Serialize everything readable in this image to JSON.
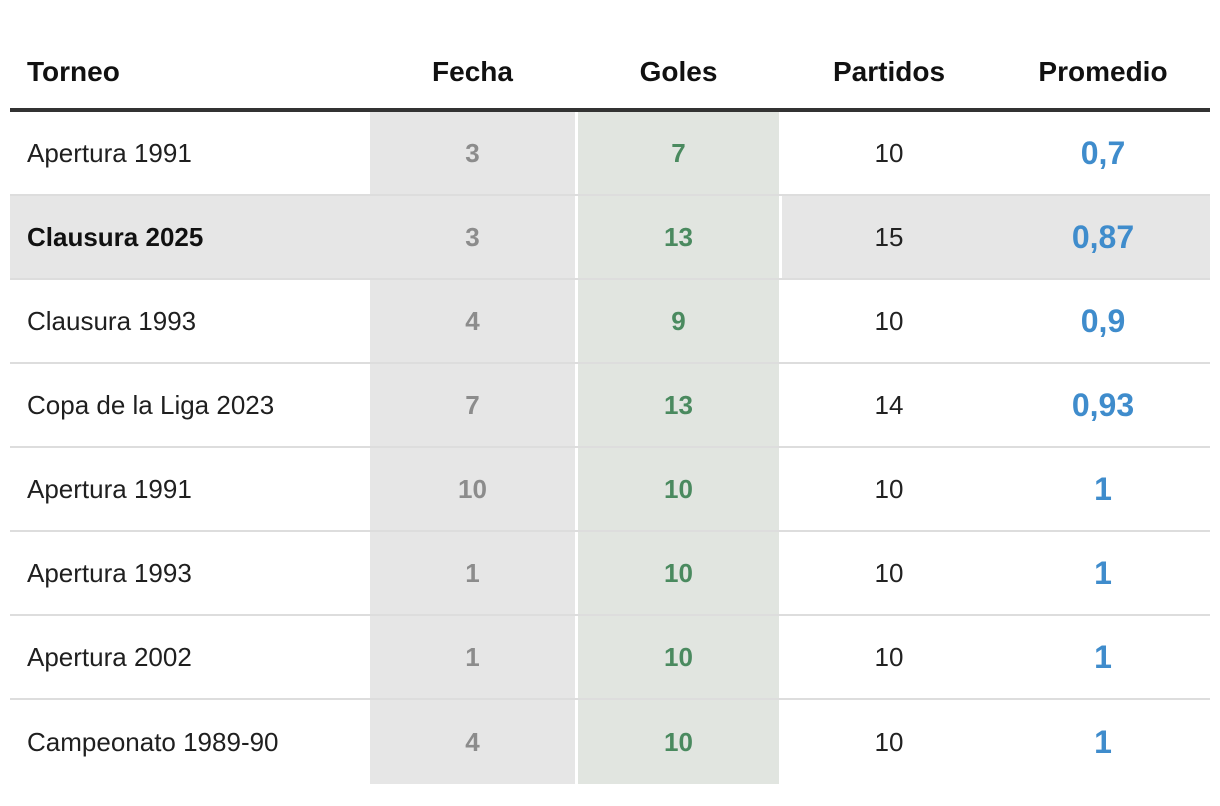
{
  "chart_data": {
    "type": "table",
    "columns": [
      "Torneo",
      "Fecha",
      "Goles",
      "Partidos",
      "Promedio"
    ],
    "rows": [
      {
        "torneo": "Apertura 1991",
        "fecha": "3",
        "goles": "7",
        "partidos": "10",
        "promedio": "0,7",
        "highlight": false
      },
      {
        "torneo": "Clausura 2025",
        "fecha": "3",
        "goles": "13",
        "partidos": "15",
        "promedio": "0,87",
        "highlight": true
      },
      {
        "torneo": "Clausura 1993",
        "fecha": "4",
        "goles": "9",
        "partidos": "10",
        "promedio": "0,9",
        "highlight": false
      },
      {
        "torneo": "Copa de la Liga 2023",
        "fecha": "7",
        "goles": "13",
        "partidos": "14",
        "promedio": "0,93",
        "highlight": false
      },
      {
        "torneo": "Apertura 1991",
        "fecha": "10",
        "goles": "10",
        "partidos": "10",
        "promedio": "1",
        "highlight": false
      },
      {
        "torneo": "Apertura 1993",
        "fecha": "1",
        "goles": "10",
        "partidos": "10",
        "promedio": "1",
        "highlight": false
      },
      {
        "torneo": "Apertura 2002",
        "fecha": "1",
        "goles": "10",
        "partidos": "10",
        "promedio": "1",
        "highlight": false
      },
      {
        "torneo": "Campeonato 1989-90",
        "fecha": "4",
        "goles": "10",
        "partidos": "10",
        "promedio": "1",
        "highlight": false
      }
    ],
    "colors": {
      "fecha_bg": "#e6e6e6",
      "goles_bg": "#e1e5e0",
      "goles_text": "#4a8a5f",
      "promedio_text": "#3f8ccc",
      "highlight_bg": "#e6e6e6"
    }
  }
}
